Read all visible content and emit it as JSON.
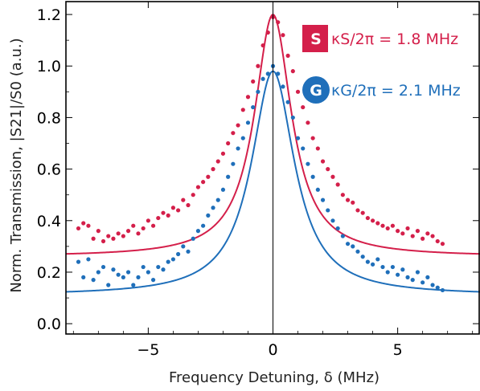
{
  "chart_data": {
    "type": "scatter",
    "xlabel": "Frequency Detuning, δ (MHz)",
    "ylabel": "Norm. Transmission, |S21|/S0 (a.u.)",
    "xlim": [
      -8.3,
      8.3
    ],
    "ylim": [
      -0.04,
      1.25
    ],
    "xticks": [
      -5,
      0,
      5
    ],
    "xtick_labels": [
      "−5",
      "0",
      "5"
    ],
    "yticks": [
      0.0,
      0.2,
      0.4,
      0.6,
      0.8,
      1.0,
      1.2
    ],
    "ytick_labels": [
      "0.0",
      "0.2",
      "0.4",
      "0.6",
      "0.8",
      "1.0",
      "1.2"
    ],
    "grid": false,
    "vertical_line_x": 0,
    "legend_placement": "top-right",
    "series": [
      {
        "badge": "S",
        "label": "κS/2π = 1.8 MHz",
        "color": "#d41f4a",
        "fit": {
          "model": "lorentzian",
          "center": 0,
          "width_mhz": 1.8,
          "peak": 1.2,
          "baseline": 0.26
        },
        "x": [
          -7.8,
          -7.6,
          -7.4,
          -7.2,
          -7.0,
          -6.8,
          -6.6,
          -6.4,
          -6.2,
          -6.0,
          -5.8,
          -5.6,
          -5.4,
          -5.2,
          -5.0,
          -4.8,
          -4.6,
          -4.4,
          -4.2,
          -4.0,
          -3.8,
          -3.6,
          -3.4,
          -3.2,
          -3.0,
          -2.8,
          -2.6,
          -2.4,
          -2.2,
          -2.0,
          -1.8,
          -1.6,
          -1.4,
          -1.2,
          -1.0,
          -0.8,
          -0.6,
          -0.4,
          -0.2,
          0.0,
          0.2,
          0.4,
          0.6,
          0.8,
          1.0,
          1.2,
          1.4,
          1.6,
          1.8,
          2.0,
          2.2,
          2.4,
          2.6,
          2.8,
          3.0,
          3.2,
          3.4,
          3.6,
          3.8,
          4.0,
          4.2,
          4.4,
          4.6,
          4.8,
          5.0,
          5.2,
          5.4,
          5.6,
          5.8,
          6.0,
          6.2,
          6.4,
          6.6,
          6.8
        ],
        "y": [
          0.37,
          0.39,
          0.38,
          0.33,
          0.36,
          0.32,
          0.34,
          0.33,
          0.35,
          0.34,
          0.36,
          0.38,
          0.35,
          0.37,
          0.4,
          0.38,
          0.41,
          0.43,
          0.42,
          0.45,
          0.44,
          0.48,
          0.46,
          0.5,
          0.53,
          0.55,
          0.57,
          0.6,
          0.63,
          0.66,
          0.7,
          0.74,
          0.77,
          0.83,
          0.88,
          0.94,
          1.0,
          1.08,
          1.13,
          1.19,
          1.17,
          1.12,
          1.04,
          0.98,
          0.9,
          0.84,
          0.78,
          0.72,
          0.68,
          0.63,
          0.6,
          0.57,
          0.54,
          0.5,
          0.48,
          0.47,
          0.44,
          0.43,
          0.41,
          0.4,
          0.39,
          0.38,
          0.37,
          0.38,
          0.36,
          0.35,
          0.37,
          0.34,
          0.36,
          0.33,
          0.35,
          0.34,
          0.32,
          0.31
        ]
      },
      {
        "badge": "G",
        "label": "κG/2π = 2.1 MHz",
        "color": "#1f6fba",
        "fit": {
          "model": "lorentzian",
          "center": 0,
          "width_mhz": 2.1,
          "peak": 0.98,
          "baseline": 0.11
        },
        "x": [
          -7.8,
          -7.6,
          -7.4,
          -7.2,
          -7.0,
          -6.8,
          -6.6,
          -6.4,
          -6.2,
          -6.0,
          -5.8,
          -5.6,
          -5.4,
          -5.2,
          -5.0,
          -4.8,
          -4.6,
          -4.4,
          -4.2,
          -4.0,
          -3.8,
          -3.6,
          -3.4,
          -3.2,
          -3.0,
          -2.8,
          -2.6,
          -2.4,
          -2.2,
          -2.0,
          -1.8,
          -1.6,
          -1.4,
          -1.2,
          -1.0,
          -0.8,
          -0.6,
          -0.4,
          -0.2,
          0.0,
          0.2,
          0.4,
          0.6,
          0.8,
          1.0,
          1.2,
          1.4,
          1.6,
          1.8,
          2.0,
          2.2,
          2.4,
          2.6,
          2.8,
          3.0,
          3.2,
          3.4,
          3.6,
          3.8,
          4.0,
          4.2,
          4.4,
          4.6,
          4.8,
          5.0,
          5.2,
          5.4,
          5.6,
          5.8,
          6.0,
          6.2,
          6.4,
          6.6,
          6.8
        ],
        "y": [
          0.24,
          0.18,
          0.25,
          0.17,
          0.2,
          0.22,
          0.15,
          0.21,
          0.19,
          0.18,
          0.2,
          0.15,
          0.18,
          0.22,
          0.2,
          0.17,
          0.22,
          0.21,
          0.24,
          0.25,
          0.27,
          0.3,
          0.28,
          0.33,
          0.36,
          0.38,
          0.42,
          0.45,
          0.48,
          0.52,
          0.57,
          0.62,
          0.68,
          0.72,
          0.78,
          0.84,
          0.9,
          0.95,
          0.97,
          1.0,
          0.97,
          0.92,
          0.86,
          0.8,
          0.72,
          0.68,
          0.62,
          0.57,
          0.52,
          0.48,
          0.44,
          0.4,
          0.37,
          0.34,
          0.31,
          0.3,
          0.28,
          0.26,
          0.24,
          0.23,
          0.25,
          0.22,
          0.2,
          0.22,
          0.19,
          0.21,
          0.18,
          0.17,
          0.2,
          0.16,
          0.18,
          0.15,
          0.14,
          0.13
        ]
      }
    ]
  }
}
